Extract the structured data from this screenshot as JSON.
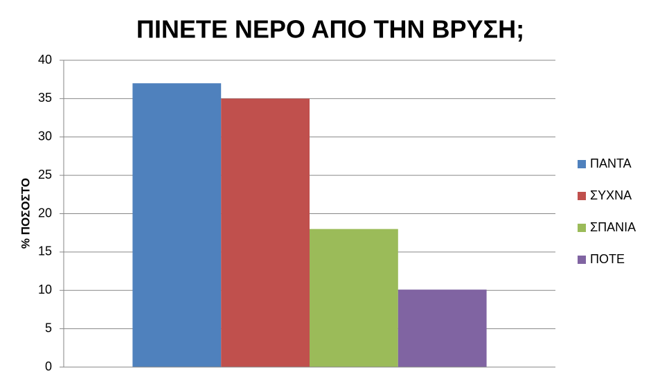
{
  "chart_data": {
    "type": "bar",
    "title": "ΠΙΝΕΤΕ ΝΕΡΟ ΑΠΟ ΤΗΝ ΒΡΥΣΗ;",
    "y_label": "% ΠΟΣΟΣΤΟ",
    "categories": [
      null
    ],
    "series": [
      {
        "name": "ΠΑΝΤΑ",
        "color": "#4f81bd",
        "values": [
          37
        ]
      },
      {
        "name": "ΣΥΧΝΑ",
        "color": "#c0504d",
        "values": [
          35
        ]
      },
      {
        "name": "ΣΠΑΝΙΑ",
        "color": "#9bbb59",
        "values": [
          18
        ]
      },
      {
        "name": "ΠΟΤΕ",
        "color": "#8064a2",
        "values": [
          10.1
        ]
      }
    ],
    "ylim": [
      0,
      40
    ],
    "yticks": [
      0,
      5,
      10,
      15,
      20,
      25,
      30,
      35,
      40
    ],
    "grid": true,
    "legend": "right"
  }
}
